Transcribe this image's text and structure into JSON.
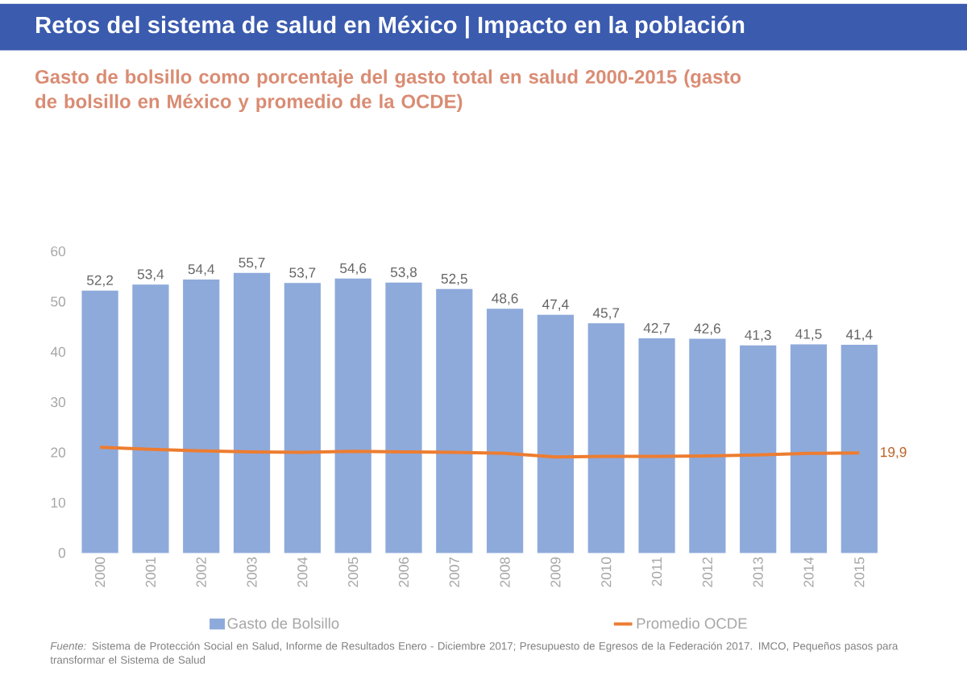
{
  "chart_data": {
    "type": "bar",
    "title": "Retos del sistema de salud en México | Impacto en la población",
    "subtitle": "Gasto de bolsillo como porcentaje del gasto total en salud 2000-2015 (gasto de bolsillo en México y promedio de la OCDE)",
    "categories": [
      "2000",
      "2001",
      "2002",
      "2003",
      "2004",
      "2005",
      "2006",
      "2007",
      "2008",
      "2009",
      "2010",
      "2011",
      "2012",
      "2013",
      "2014",
      "2015"
    ],
    "series": [
      {
        "name": "Gasto de Bolsillo",
        "type": "bar",
        "color": "#8eaadb",
        "values": [
          52.2,
          53.4,
          54.4,
          55.7,
          53.7,
          54.6,
          53.8,
          52.5,
          48.6,
          47.4,
          45.7,
          42.7,
          42.6,
          41.3,
          41.5,
          41.4
        ],
        "value_labels": [
          "52,2",
          "53,4",
          "54,4",
          "55,7",
          "53,7",
          "54,6",
          "53,8",
          "52,5",
          "48,6",
          "47,4",
          "45,7",
          "42,7",
          "42,6",
          "41,3",
          "41,5",
          "41,4"
        ]
      },
      {
        "name": "Promedio OCDE",
        "type": "line",
        "color": "#ed7d31",
        "values": [
          21.0,
          20.6,
          20.3,
          20.1,
          20.0,
          20.2,
          20.1,
          20.0,
          19.8,
          19.1,
          19.2,
          19.2,
          19.3,
          19.5,
          19.8,
          19.9
        ],
        "value_labels": [
          null,
          null,
          null,
          null,
          null,
          null,
          null,
          null,
          null,
          null,
          null,
          null,
          null,
          null,
          null,
          "19,9"
        ]
      }
    ],
    "ylim": [
      0,
      60
    ],
    "yticks": [
      0,
      10,
      20,
      30,
      40,
      50,
      60
    ],
    "legend": "bottom",
    "annotations": [
      "*Fuente:* Sistema de Protección Social en Salud, Informe de Resultados Enero - Diciembre 2017; Presupuesto de Egresos de la Federación 2017. IMCO, Pequeños pasos para transformar el Sistema de Salud"
    ]
  }
}
